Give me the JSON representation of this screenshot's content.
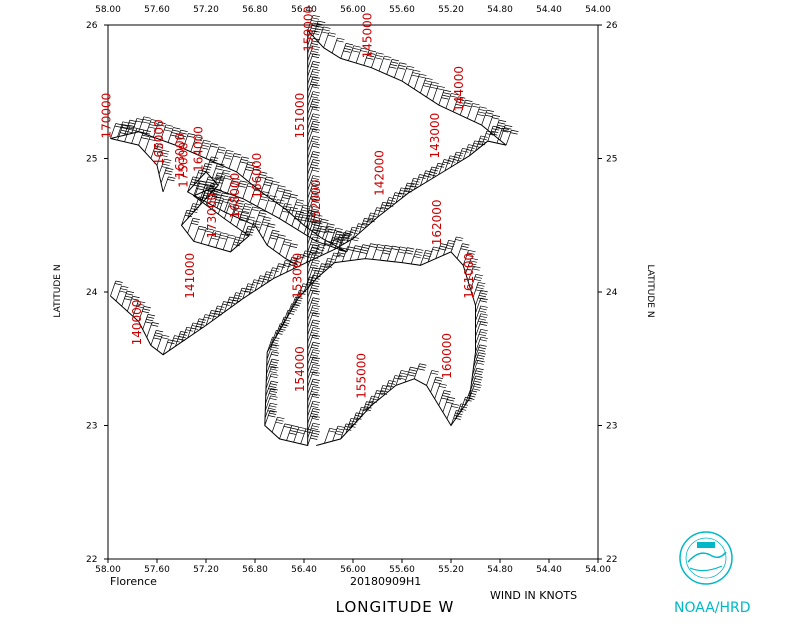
{
  "chart_data": {
    "type": "scatter",
    "xlabel": "LONGITUDE   W",
    "ylabel": "LATITUDE   N",
    "xlim": [
      58.0,
      54.0
    ],
    "ylim": [
      22,
      26
    ],
    "x_ticks": [
      "58.00",
      "57.60",
      "57.20",
      "56.80",
      "56.40",
      "56.00",
      "55.60",
      "55.20",
      "54.80",
      "54.40",
      "54.00"
    ],
    "y_ticks": [
      "22",
      "23",
      "24",
      "25",
      "26"
    ],
    "grid": false,
    "storm_name": "Florence",
    "flight_id": "20180909H1",
    "units_note": "WIND IN KNOTS",
    "series": [
      {
        "values": [
          [
            57.98,
            23.97
          ],
          [
            57.75,
            23.78
          ],
          [
            57.65,
            23.6
          ],
          [
            57.55,
            23.53
          ],
          [
            57.2,
            23.75
          ],
          [
            56.9,
            23.95
          ],
          [
            56.65,
            24.1
          ],
          [
            56.38,
            24.22
          ],
          [
            56.15,
            24.32
          ],
          [
            56.0,
            24.4
          ],
          [
            55.8,
            24.56
          ],
          [
            55.55,
            24.74
          ],
          [
            55.3,
            24.88
          ],
          [
            55.05,
            25.02
          ],
          [
            54.9,
            25.13
          ],
          [
            54.75,
            25.1
          ],
          [
            54.95,
            25.25
          ],
          [
            55.3,
            25.4
          ],
          [
            55.6,
            25.58
          ],
          [
            55.85,
            25.68
          ],
          [
            56.1,
            25.75
          ],
          [
            56.24,
            25.83
          ],
          [
            56.37,
            25.96
          ],
          [
            56.37,
            25.5
          ],
          [
            56.37,
            25.0
          ],
          [
            56.37,
            24.7
          ],
          [
            56.37,
            24.3
          ],
          [
            56.37,
            23.9
          ],
          [
            56.37,
            23.4
          ],
          [
            56.37,
            22.85
          ],
          [
            56.6,
            22.9
          ],
          [
            56.72,
            23.0
          ],
          [
            56.7,
            23.55
          ],
          [
            56.45,
            23.95
          ],
          [
            56.3,
            24.1
          ],
          [
            56.15,
            24.22
          ],
          [
            55.9,
            24.25
          ],
          [
            55.6,
            24.22
          ],
          [
            55.45,
            24.2
          ],
          [
            55.2,
            24.3
          ],
          [
            55.1,
            24.2
          ],
          [
            55.0,
            23.9
          ],
          [
            55.0,
            23.55
          ],
          [
            55.05,
            23.2
          ],
          [
            55.2,
            23.0
          ],
          [
            55.4,
            23.3
          ],
          [
            55.5,
            23.35
          ],
          [
            55.65,
            23.3
          ],
          [
            55.85,
            23.15
          ],
          [
            56.1,
            22.9
          ],
          [
            56.3,
            22.85
          ]
        ]
      },
      {
        "values": [
          [
            57.55,
            24.75
          ],
          [
            57.6,
            24.95
          ],
          [
            57.75,
            25.1
          ],
          [
            57.98,
            25.15
          ],
          [
            57.75,
            25.2
          ],
          [
            57.45,
            25.1
          ],
          [
            57.2,
            25.0
          ],
          [
            56.95,
            24.9
          ],
          [
            56.75,
            24.75
          ],
          [
            56.55,
            24.62
          ],
          [
            56.4,
            24.5
          ],
          [
            56.25,
            24.4
          ],
          [
            56.05,
            24.3
          ],
          [
            56.3,
            24.38
          ],
          [
            56.6,
            24.55
          ],
          [
            56.9,
            24.7
          ],
          [
            57.15,
            24.78
          ],
          [
            57.3,
            24.72
          ],
          [
            57.05,
            24.55
          ],
          [
            56.85,
            24.42
          ],
          [
            57.0,
            24.3
          ],
          [
            57.3,
            24.38
          ],
          [
            57.4,
            24.5
          ],
          [
            57.25,
            24.65
          ],
          [
            57.1,
            24.8
          ],
          [
            57.2,
            24.9
          ],
          [
            57.35,
            24.75
          ],
          [
            57.05,
            24.6
          ],
          [
            56.8,
            24.5
          ],
          [
            56.7,
            24.35
          ],
          [
            56.55,
            24.25
          ],
          [
            56.45,
            24.2
          ]
        ]
      }
    ],
    "annotations": [
      "145000",
      "144000",
      "143000",
      "142000",
      "162000",
      "161000",
      "160000",
      "155000",
      "154000",
      "153000",
      "152000",
      "151000",
      "150000",
      "141000",
      "140000",
      "170000",
      "165000",
      "164000",
      "163000",
      "175000",
      "166000",
      "168000",
      "173000"
    ],
    "logo_text": "NOAA/HRD"
  }
}
